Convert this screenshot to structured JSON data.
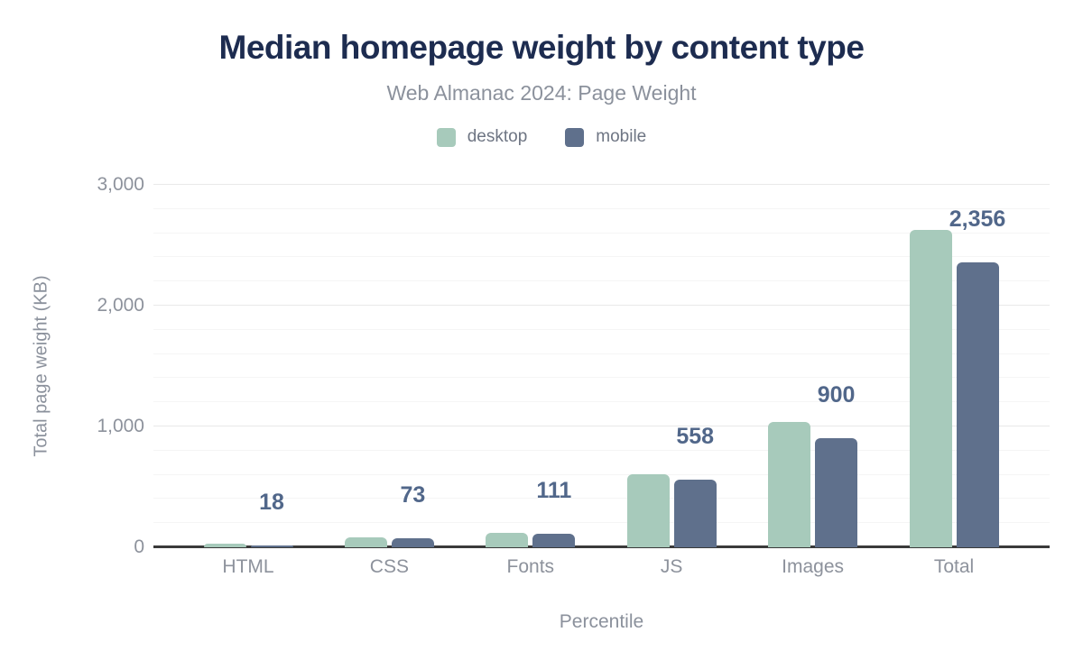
{
  "colors": {
    "background": "#ffffff",
    "title": "#1d2c50",
    "subtitle_gray": "#8b919c",
    "tick_gray": "#8d929c",
    "legend_text_gray": "#6e7583",
    "data_label_blue": "#51678a",
    "desktop_green": "#a7cabb",
    "mobile_slate": "#5f708c",
    "axis_line": "#3a3a3a",
    "grid_major": "#e9e9e9",
    "grid_minor": "#f5f5f5"
  },
  "chart_data": {
    "type": "bar",
    "title": "Median homepage weight by content type",
    "subtitle": "Web Almanac 2024: Page Weight",
    "xlabel": "Percentile",
    "ylabel": "Total page weight (KB)",
    "categories": [
      "HTML",
      "CSS",
      "Fonts",
      "JS",
      "Images",
      "Total"
    ],
    "series": [
      {
        "name": "desktop",
        "color_key": "desktop_green",
        "values": [
          27,
          80,
          123,
          605,
          1040,
          2625
        ]
      },
      {
        "name": "mobile",
        "color_key": "mobile_slate",
        "values": [
          18,
          73,
          111,
          558,
          900,
          2356
        ],
        "data_labels": [
          "18",
          "73",
          "111",
          "558",
          "900",
          "2,356"
        ]
      }
    ],
    "ylim": [
      0,
      3000
    ],
    "yticks": [
      {
        "value": 0,
        "label": "0"
      },
      {
        "value": 1000,
        "label": "1,000"
      },
      {
        "value": 2000,
        "label": "2,000"
      },
      {
        "value": 3000,
        "label": "3,000"
      }
    ],
    "minor_grid_step": 200,
    "major_grid_step": 1000,
    "grid": "horizontal",
    "legend_position": "top"
  }
}
